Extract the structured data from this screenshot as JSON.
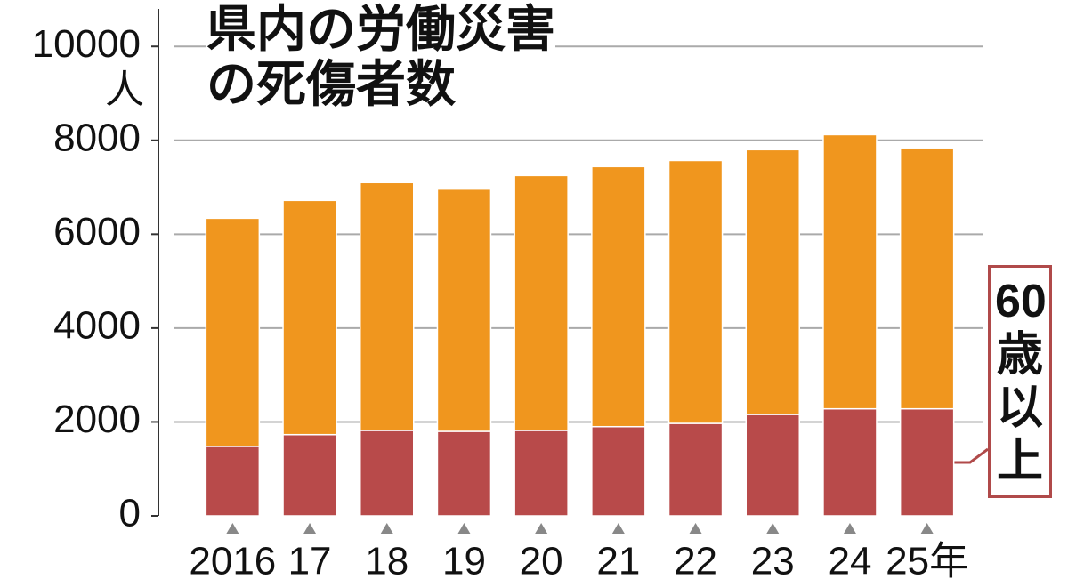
{
  "chart_data": {
    "type": "stacked_bar",
    "title": "県内の労働災害の死傷者数",
    "y_unit": "人",
    "categories": [
      "2016",
      "17",
      "18",
      "19",
      "20",
      "21",
      "22",
      "23",
      "24",
      "25年"
    ],
    "series": [
      {
        "name": "60歳以上",
        "color": "#b84a4a",
        "values": [
          1480,
          1730,
          1820,
          1800,
          1820,
          1900,
          1970,
          2160,
          2280,
          2280
        ]
      },
      {
        "color": "#f0961e",
        "values": [
          4860,
          4990,
          5280,
          5160,
          5430,
          5540,
          5600,
          5640,
          5840,
          5560
        ]
      }
    ],
    "ylim": [
      0,
      10800
    ],
    "yticks": [
      0,
      2000,
      4000,
      6000,
      8000,
      10000
    ],
    "grid": true
  }
}
